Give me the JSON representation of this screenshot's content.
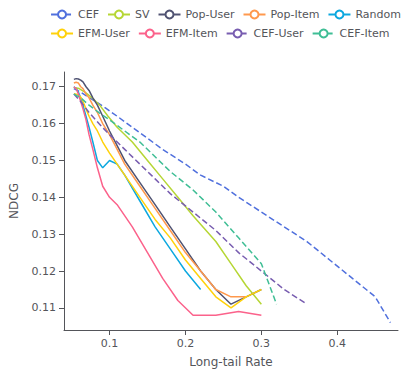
{
  "chart_data": {
    "type": "line",
    "xlabel": "Long-tail Rate",
    "ylabel": "NDCG",
    "xlim": [
      0.04,
      0.48
    ],
    "ylim": [
      0.104,
      0.174
    ],
    "xticks": [
      0.1,
      0.2,
      0.3,
      0.4
    ],
    "yticks": [
      0.11,
      0.12,
      0.13,
      0.14,
      0.15,
      0.16,
      0.17
    ],
    "grid": false,
    "legend": "upper right",
    "series": [
      {
        "name": "CEF",
        "line_style": "dashed",
        "x": [
          0.053,
          0.062,
          0.072,
          0.083,
          0.095,
          0.11,
          0.13,
          0.15,
          0.17,
          0.2,
          0.22,
          0.25,
          0.27,
          0.3,
          0.33,
          0.36,
          0.39,
          0.42,
          0.45,
          0.47
        ],
        "values": [
          0.1695,
          0.1685,
          0.1672,
          0.1658,
          0.1642,
          0.162,
          0.159,
          0.156,
          0.153,
          0.149,
          0.146,
          0.143,
          0.14,
          0.136,
          0.132,
          0.128,
          0.123,
          0.118,
          0.113,
          0.106
        ]
      },
      {
        "name": "SV",
        "line_style": "solid",
        "x": [
          0.053,
          0.06,
          0.068,
          0.077,
          0.087,
          0.098,
          0.11,
          0.13,
          0.15,
          0.17,
          0.19,
          0.21,
          0.24,
          0.26,
          0.28,
          0.3
        ],
        "values": [
          0.1698,
          0.1695,
          0.1685,
          0.167,
          0.165,
          0.162,
          0.159,
          0.155,
          0.15,
          0.145,
          0.14,
          0.135,
          0.128,
          0.122,
          0.116,
          0.111
        ]
      },
      {
        "name": "Pop-User",
        "line_style": "solid",
        "x": [
          0.053,
          0.056,
          0.059,
          0.062,
          0.065,
          0.069,
          0.073,
          0.078,
          0.084,
          0.091,
          0.1,
          0.11,
          0.12,
          0.14,
          0.16,
          0.18,
          0.2,
          0.22,
          0.24,
          0.26,
          0.28,
          0.3
        ],
        "values": [
          0.172,
          0.1722,
          0.1721,
          0.1718,
          0.1713,
          0.17,
          0.169,
          0.167,
          0.165,
          0.162,
          0.158,
          0.154,
          0.15,
          0.144,
          0.138,
          0.132,
          0.126,
          0.12,
          0.115,
          0.111,
          0.113,
          0.115
        ]
      },
      {
        "name": "Pop-Item",
        "line_style": "solid",
        "x": [
          0.053,
          0.056,
          0.059,
          0.062,
          0.065,
          0.069,
          0.073,
          0.078,
          0.084,
          0.091,
          0.1,
          0.11,
          0.12,
          0.14,
          0.16,
          0.18,
          0.2,
          0.22,
          0.24,
          0.26,
          0.28
        ],
        "values": [
          0.171,
          0.1712,
          0.171,
          0.17,
          0.1695,
          0.168,
          0.167,
          0.165,
          0.163,
          0.16,
          0.157,
          0.153,
          0.149,
          0.143,
          0.137,
          0.131,
          0.125,
          0.12,
          0.115,
          0.113,
          0.113
        ]
      },
      {
        "name": "Random",
        "line_style": "solid",
        "x": [
          0.053,
          0.056,
          0.059,
          0.062,
          0.065,
          0.069,
          0.073,
          0.078,
          0.084,
          0.091,
          0.1,
          0.11,
          0.12,
          0.14,
          0.16,
          0.18,
          0.2,
          0.22
        ],
        "values": [
          0.17,
          0.1695,
          0.1685,
          0.167,
          0.165,
          0.162,
          0.159,
          0.155,
          0.15,
          0.148,
          0.15,
          0.149,
          0.146,
          0.139,
          0.132,
          0.126,
          0.12,
          0.115
        ]
      },
      {
        "name": "EFM-User",
        "line_style": "solid",
        "x": [
          0.053,
          0.056,
          0.059,
          0.062,
          0.065,
          0.069,
          0.073,
          0.078,
          0.084,
          0.091,
          0.1,
          0.11,
          0.12,
          0.14,
          0.16,
          0.18,
          0.2,
          0.22,
          0.24,
          0.26,
          0.28,
          0.3
        ],
        "values": [
          0.168,
          0.168,
          0.1678,
          0.1672,
          0.166,
          0.164,
          0.162,
          0.16,
          0.158,
          0.155,
          0.152,
          0.149,
          0.146,
          0.14,
          0.134,
          0.129,
          0.123,
          0.118,
          0.113,
          0.11,
          0.113,
          0.115
        ]
      },
      {
        "name": "EFM-Item",
        "line_style": "solid",
        "x": [
          0.053,
          0.056,
          0.059,
          0.062,
          0.065,
          0.069,
          0.073,
          0.078,
          0.084,
          0.091,
          0.1,
          0.11,
          0.13,
          0.15,
          0.17,
          0.19,
          0.21,
          0.24,
          0.27,
          0.3
        ],
        "values": [
          0.17,
          0.1695,
          0.168,
          0.166,
          0.164,
          0.161,
          0.157,
          0.153,
          0.148,
          0.143,
          0.14,
          0.138,
          0.132,
          0.125,
          0.118,
          0.112,
          0.108,
          0.108,
          0.109,
          0.108
        ]
      },
      {
        "name": "CEF-User",
        "line_style": "dashed",
        "x": [
          0.053,
          0.062,
          0.073,
          0.086,
          0.1,
          0.12,
          0.14,
          0.16,
          0.18,
          0.21,
          0.24,
          0.27,
          0.3,
          0.33,
          0.36
        ],
        "values": [
          0.168,
          0.166,
          0.163,
          0.16,
          0.157,
          0.153,
          0.149,
          0.145,
          0.141,
          0.136,
          0.131,
          0.125,
          0.12,
          0.115,
          0.111
        ]
      },
      {
        "name": "CEF-Item",
        "line_style": "dashed",
        "x": [
          0.053,
          0.062,
          0.073,
          0.086,
          0.1,
          0.12,
          0.14,
          0.16,
          0.18,
          0.21,
          0.24,
          0.27,
          0.3,
          0.32
        ],
        "values": [
          0.168,
          0.167,
          0.165,
          0.163,
          0.161,
          0.158,
          0.155,
          0.151,
          0.147,
          0.142,
          0.136,
          0.129,
          0.122,
          0.111
        ]
      }
    ]
  }
}
